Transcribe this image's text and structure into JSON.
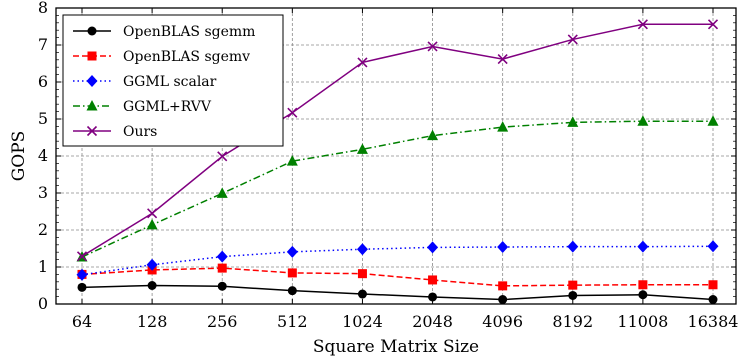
{
  "chart_data": {
    "type": "line",
    "title": "",
    "xlabel": "Square Matrix Size",
    "ylabel": "GOPS",
    "categories": [
      "64",
      "128",
      "256",
      "512",
      "1024",
      "2048",
      "4096",
      "8192",
      "11008",
      "16384"
    ],
    "ylim": [
      0,
      8
    ],
    "yticks": [
      "0",
      "1",
      "2",
      "3",
      "4",
      "5",
      "6",
      "7",
      "8"
    ],
    "grid": true,
    "legend_position": "top-left",
    "series": [
      {
        "name": "OpenBLAS sgemm",
        "color": "#000000",
        "linestyle": "solid",
        "marker": "circle",
        "values": [
          0.45,
          0.5,
          0.48,
          0.36,
          0.27,
          0.19,
          0.12,
          0.23,
          0.25,
          0.12
        ]
      },
      {
        "name": "OpenBLAS sgemv",
        "color": "#ff0000",
        "linestyle": "dashed",
        "marker": "square",
        "values": [
          0.8,
          0.92,
          0.97,
          0.84,
          0.82,
          0.65,
          0.49,
          0.51,
          0.52,
          0.52
        ]
      },
      {
        "name": "GGML scalar",
        "color": "#0000ff",
        "linestyle": "dotted",
        "marker": "diamond",
        "values": [
          0.79,
          1.06,
          1.28,
          1.41,
          1.48,
          1.53,
          1.54,
          1.55,
          1.55,
          1.56
        ]
      },
      {
        "name": "GGML+RVV",
        "color": "#008000",
        "linestyle": "dashdot",
        "marker": "triangle",
        "values": [
          1.27,
          2.14,
          2.99,
          3.86,
          4.18,
          4.55,
          4.78,
          4.91,
          4.94,
          4.94
        ]
      },
      {
        "name": "Ours",
        "color": "#800080",
        "linestyle": "solid",
        "marker": "x",
        "values": [
          1.29,
          2.45,
          3.99,
          5.17,
          6.53,
          6.96,
          6.62,
          7.15,
          7.56,
          7.56
        ]
      }
    ]
  }
}
